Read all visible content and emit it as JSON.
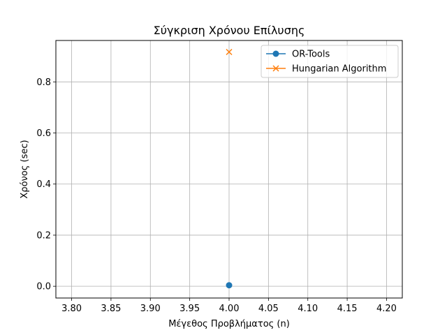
{
  "chart_data": {
    "type": "line",
    "title": "Σύγκριση Χρόνου Επίλυσης",
    "xlabel": "Μέγεθος Προβλήματος (n)",
    "ylabel": "Χρόνος (sec)",
    "xlim": [
      3.78,
      4.22
    ],
    "ylim": [
      -0.046,
      0.962
    ],
    "x_ticks": [
      3.8,
      3.85,
      3.9,
      3.95,
      4.0,
      4.05,
      4.1,
      4.15,
      4.2
    ],
    "x_tick_labels": [
      "3.80",
      "3.85",
      "3.90",
      "3.95",
      "4.00",
      "4.05",
      "4.10",
      "4.15",
      "4.20"
    ],
    "y_ticks": [
      0.0,
      0.2,
      0.4,
      0.6,
      0.8
    ],
    "y_tick_labels": [
      "0.0",
      "0.2",
      "0.4",
      "0.6",
      "0.8"
    ],
    "grid": true,
    "legend_position": "top-right",
    "series": [
      {
        "name": "OR-Tools",
        "marker": "circle",
        "color": "#1f77b4",
        "x": [
          4
        ],
        "y": [
          0.004
        ]
      },
      {
        "name": "Hungarian Algorithm",
        "marker": "x",
        "color": "#ff7f0e",
        "x": [
          4
        ],
        "y": [
          0.917
        ]
      }
    ]
  }
}
